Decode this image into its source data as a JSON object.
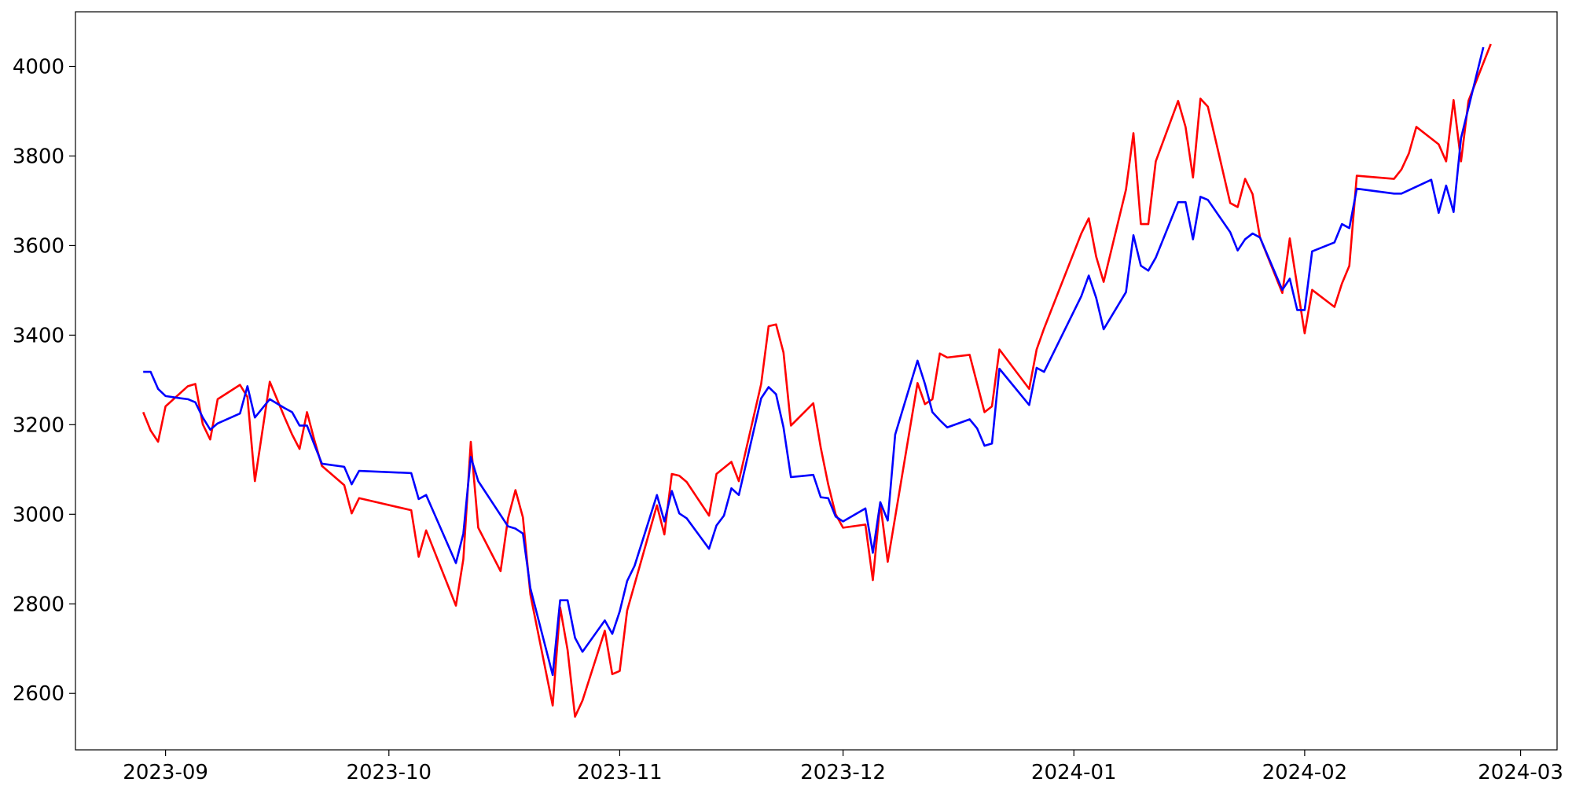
{
  "chart_data": {
    "type": "line",
    "xlim": [
      -12.1,
      186.9
    ],
    "xticks": [
      {
        "value": 0,
        "label": "2023-09"
      },
      {
        "value": 30,
        "label": "2023-10"
      },
      {
        "value": 61,
        "label": "2023-11"
      },
      {
        "value": 91,
        "label": "2023-12"
      },
      {
        "value": 122,
        "label": "2024-01"
      },
      {
        "value": 153,
        "label": "2024-02"
      },
      {
        "value": 182,
        "label": "2024-03"
      }
    ],
    "ylim": [
      2474,
      4122
    ],
    "yticks": [
      2600,
      2800,
      3000,
      3200,
      3400,
      3600,
      3800,
      4000
    ],
    "grid": false,
    "series": [
      {
        "color": "#ff0000",
        "x": [
          -3,
          -2,
          -1,
          0,
          3,
          4,
          5,
          6,
          7,
          10,
          11,
          12,
          14,
          16,
          17,
          18,
          19,
          20,
          21,
          24,
          25,
          26,
          33,
          34,
          35,
          39,
          40,
          41,
          42,
          45,
          46,
          47,
          48,
          49,
          52,
          53,
          54,
          55,
          56,
          59,
          60,
          61,
          62,
          66,
          67,
          68,
          69,
          70,
          73,
          74,
          76,
          77,
          80,
          81,
          82,
          83,
          84,
          87,
          88,
          89,
          90,
          91,
          94,
          95,
          96,
          97,
          101,
          102,
          103,
          104,
          105,
          108,
          110,
          111,
          112,
          116,
          117,
          118,
          123,
          124,
          125,
          126,
          129,
          130,
          131,
          132,
          133,
          136,
          137,
          138,
          139,
          140,
          143,
          144,
          145,
          146,
          147,
          150,
          151,
          153,
          154,
          157,
          158,
          159,
          160,
          165,
          166,
          167,
          168,
          171,
          172,
          173,
          174,
          175,
          178
        ],
        "values": [
          3228,
          3187,
          3162,
          3241,
          3286,
          3291,
          3201,
          3167,
          3257,
          3289,
          3262,
          3074,
          3296,
          3216,
          3178,
          3146,
          3228,
          3165,
          3108,
          3065,
          3002,
          3036,
          3009,
          2905,
          2964,
          2796,
          2900,
          3162,
          2970,
          2873,
          2991,
          3054,
          2993,
          2821,
          2573,
          2792,
          2697,
          2548,
          2584,
          2740,
          2643,
          2650,
          2785,
          3020,
          2955,
          3090,
          3086,
          3072,
          2997,
          3090,
          3117,
          3074,
          3291,
          3420,
          3424,
          3361,
          3198,
          3248,
          3149,
          3067,
          3000,
          2970,
          2977,
          2853,
          3025,
          2894,
          3293,
          3246,
          3257,
          3359,
          3350,
          3356,
          3228,
          3241,
          3368,
          3280,
          3368,
          3415,
          3627,
          3661,
          3575,
          3519,
          3725,
          3851,
          3648,
          3648,
          3788,
          3923,
          3865,
          3752,
          3928,
          3910,
          3695,
          3686,
          3749,
          3715,
          3618,
          3494,
          3616,
          3404,
          3501,
          3463,
          3515,
          3555,
          3756,
          3749,
          3770,
          3806,
          3865,
          3826,
          3788,
          3925,
          3788,
          3923,
          4050
        ]
      },
      {
        "color": "#0000ff",
        "x": [
          -3,
          -2,
          -1,
          0,
          2,
          3,
          4,
          5,
          6,
          7,
          10,
          11,
          12,
          14,
          16,
          17,
          18,
          19,
          20,
          21,
          24,
          25,
          26,
          33,
          34,
          35,
          39,
          40,
          41,
          42,
          46,
          47,
          48,
          49,
          52,
          53,
          54,
          55,
          56,
          59,
          60,
          61,
          62,
          63,
          66,
          67,
          68,
          69,
          70,
          73,
          74,
          75,
          76,
          77,
          80,
          81,
          82,
          83,
          84,
          87,
          88,
          89,
          90,
          91,
          94,
          95,
          96,
          97,
          98,
          101,
          102,
          103,
          104,
          105,
          108,
          109,
          110,
          111,
          112,
          116,
          117,
          118,
          123,
          124,
          125,
          126,
          129,
          130,
          131,
          132,
          133,
          136,
          137,
          138,
          139,
          140,
          143,
          144,
          145,
          146,
          147,
          150,
          151,
          152,
          153,
          154,
          157,
          158,
          159,
          160,
          165,
          166,
          170,
          171,
          172,
          173,
          174,
          177
        ],
        "values": [
          3318,
          3318,
          3280,
          3264,
          3259,
          3257,
          3250,
          3216,
          3189,
          3203,
          3225,
          3286,
          3216,
          3257,
          3237,
          3228,
          3198,
          3198,
          3155,
          3113,
          3106,
          3067,
          3097,
          3092,
          3034,
          3043,
          2891,
          2957,
          3128,
          3074,
          2973,
          2968,
          2957,
          2835,
          2641,
          2808,
          2808,
          2724,
          2693,
          2763,
          2733,
          2783,
          2851,
          2885,
          3043,
          2984,
          3052,
          3002,
          2991,
          2923,
          2975,
          2997,
          3058,
          3043,
          3259,
          3284,
          3268,
          3194,
          3083,
          3088,
          3038,
          3036,
          2995,
          2984,
          3013,
          2914,
          3027,
          2986,
          3178,
          3343,
          3291,
          3228,
          3210,
          3194,
          3212,
          3192,
          3153,
          3158,
          3325,
          3244,
          3327,
          3318,
          3487,
          3533,
          3483,
          3413,
          3496,
          3623,
          3555,
          3544,
          3573,
          3697,
          3697,
          3614,
          3709,
          3702,
          3630,
          3589,
          3614,
          3627,
          3618,
          3501,
          3526,
          3456,
          3456,
          3587,
          3607,
          3648,
          3639,
          3727,
          3716,
          3716,
          3747,
          3673,
          3734,
          3675,
          3840,
          4043
        ]
      }
    ]
  }
}
